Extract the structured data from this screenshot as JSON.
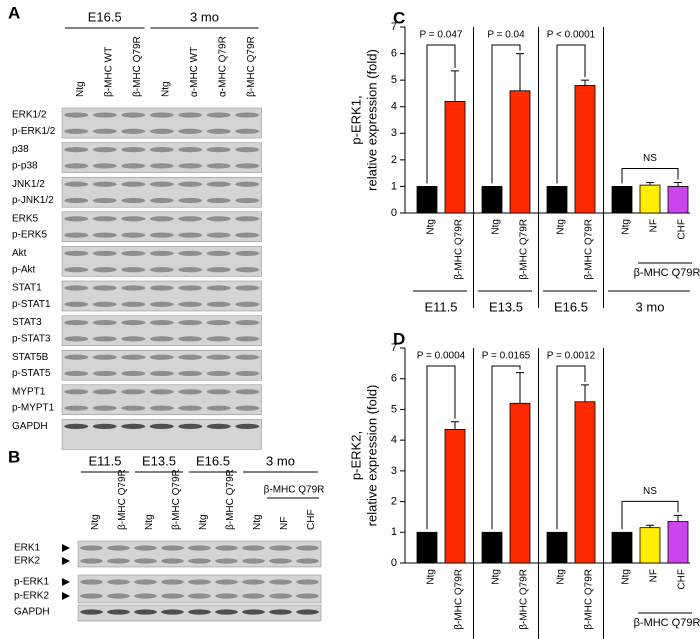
{
  "panel_a": {
    "label": "A",
    "groups": [
      {
        "label": "E16.5",
        "lanes": [
          "Ntg",
          "β-MHC WT",
          "β-MHC Q79R"
        ]
      },
      {
        "label": "3 mo",
        "lanes": [
          "Ntg",
          "α-MHC WT",
          "α-MHC Q79R",
          "β-MHC Q79R"
        ]
      }
    ],
    "rows": [
      "ERK1/2",
      "p-ERK1/2",
      "p38",
      "p-p38",
      "JNK1/2",
      "p-JNK1/2",
      "ERK5",
      "p-ERK5",
      "Akt",
      "p-Akt",
      "STAT1",
      "p-STAT1",
      "STAT3",
      "p-STAT3",
      "STAT5B",
      "p-STAT5",
      "MYPT1",
      "p-MYPT1",
      "GAPDH"
    ]
  },
  "panel_b": {
    "label": "B",
    "groups": [
      {
        "label": "E11.5",
        "lanes": [
          "Ntg",
          "β-MHC Q79R"
        ]
      },
      {
        "label": "E13.5",
        "lanes": [
          "Ntg",
          "β-MHC Q79R"
        ]
      },
      {
        "label": "E16.5",
        "lanes": [
          "Ntg",
          "β-MHC Q79R"
        ]
      },
      {
        "label": "3 mo",
        "sublabel": "β-MHC Q79R",
        "lanes": [
          "Ntg",
          "NF",
          "CHF"
        ]
      }
    ],
    "rows": [
      "ERK1",
      "ERK2",
      "p-ERK1",
      "p-ERK2",
      "GAPDH"
    ]
  },
  "chart_data": [
    {
      "type": "bar",
      "panel": "C",
      "ylabel": [
        "p-ERK1,",
        "relative expression (fold)"
      ],
      "ylim": [
        0,
        7
      ],
      "yticks": [
        0,
        1,
        2,
        3,
        4,
        5,
        6,
        7
      ],
      "groups": [
        {
          "label": "E11.5",
          "annotation": "P = 0.047",
          "categories": [
            "Ntg",
            "β-MHC Q79R"
          ],
          "values": [
            1,
            4.2
          ],
          "errors": [
            null,
            1.15
          ],
          "colors": [
            "#000000",
            "#ff2a00"
          ]
        },
        {
          "label": "E13.5",
          "annotation": "P = 0.04",
          "categories": [
            "Ntg",
            "β-MHC Q79R"
          ],
          "values": [
            1,
            4.6
          ],
          "errors": [
            null,
            1.4
          ],
          "colors": [
            "#000000",
            "#ff2a00"
          ]
        },
        {
          "label": "E16.5",
          "annotation": "P < 0.0001",
          "categories": [
            "Ntg",
            "β-MHC Q79R"
          ],
          "values": [
            1,
            4.8
          ],
          "errors": [
            null,
            0.2
          ],
          "colors": [
            "#000000",
            "#ff2a00"
          ]
        },
        {
          "label": "3 mo",
          "sublabel": "β-MHC Q79R",
          "annotation": "NS",
          "categories": [
            "Ntg",
            "NF",
            "CHF"
          ],
          "values": [
            1,
            1.05,
            1.0
          ],
          "errors": [
            null,
            0.1,
            0.15
          ],
          "colors": [
            "#000000",
            "#ffee00",
            "#cc44ee"
          ]
        }
      ]
    },
    {
      "type": "bar",
      "panel": "D",
      "ylabel": [
        "p-ERK2,",
        "relative expression (fold)"
      ],
      "ylim": [
        0,
        7
      ],
      "yticks": [
        0,
        1,
        2,
        3,
        4,
        5,
        6,
        7
      ],
      "groups": [
        {
          "label": "E11.5",
          "annotation": "P = 0.0004",
          "categories": [
            "Ntg",
            "β-MHC Q79R"
          ],
          "values": [
            1,
            4.35
          ],
          "errors": [
            null,
            0.25
          ],
          "colors": [
            "#000000",
            "#ff2a00"
          ]
        },
        {
          "label": "E13.5",
          "annotation": "P = 0.0165",
          "categories": [
            "Ntg",
            "β-MHC Q79R"
          ],
          "values": [
            1,
            5.2
          ],
          "errors": [
            null,
            1.0
          ],
          "colors": [
            "#000000",
            "#ff2a00"
          ]
        },
        {
          "label": "E16.5",
          "annotation": "P = 0.0012",
          "categories": [
            "Ntg",
            "β-MHC Q79R"
          ],
          "values": [
            1,
            5.25
          ],
          "errors": [
            null,
            0.55
          ],
          "colors": [
            "#000000",
            "#ff2a00"
          ]
        },
        {
          "label": "3 mo",
          "sublabel": "β-MHC Q79R",
          "annotation": "NS",
          "categories": [
            "Ntg",
            "NF",
            "CHF"
          ],
          "values": [
            1,
            1.15,
            1.35
          ],
          "errors": [
            null,
            0.08,
            0.2
          ],
          "colors": [
            "#000000",
            "#ffee00",
            "#cc44ee"
          ]
        }
      ]
    }
  ]
}
